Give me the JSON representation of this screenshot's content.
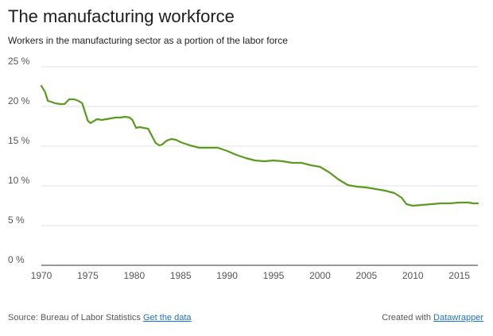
{
  "header": {
    "title": "The manufacturing workforce",
    "subtitle": "Workers in the manufacturing sector as a portion of the labor force"
  },
  "footer": {
    "source_label": "Source: Bureau of Labor Statistics",
    "get_data_link": "Get the data",
    "created_with_label": "Created with",
    "datawrapper_link": "Datawrapper"
  },
  "colors": {
    "line": "#5a9a1f",
    "grid": "#e2e2e2",
    "baseline": "#333333"
  },
  "chart_data": {
    "type": "line",
    "title": "The manufacturing workforce",
    "subtitle": "Workers in the manufacturing sector as a portion of the labor force",
    "xlabel": "",
    "ylabel": "",
    "xlim": [
      1970,
      2017
    ],
    "ylim": [
      0,
      25
    ],
    "x_ticks": [
      1970,
      1975,
      1980,
      1985,
      1990,
      1995,
      2000,
      2005,
      2010,
      2015
    ],
    "x_tick_labels": [
      "1970",
      "1975",
      "1980",
      "1985",
      "1990",
      "1995",
      "2000",
      "2005",
      "2010",
      "2015"
    ],
    "y_ticks": [
      0,
      5,
      10,
      15,
      20,
      25
    ],
    "y_tick_labels": [
      "0 %",
      "5 %",
      "10 %",
      "15 %",
      "20 %",
      "25 %"
    ],
    "grid": "horizontal",
    "legend": "none",
    "series": [
      {
        "values": [
          [
            1970.0,
            22.6
          ],
          [
            1970.4,
            21.8
          ],
          [
            1970.7,
            20.7
          ],
          [
            1971.0,
            20.6
          ],
          [
            1971.5,
            20.4
          ],
          [
            1972.0,
            20.3
          ],
          [
            1972.5,
            20.3
          ],
          [
            1973.0,
            20.9
          ],
          [
            1973.5,
            20.9
          ],
          [
            1974.0,
            20.7
          ],
          [
            1974.4,
            20.4
          ],
          [
            1974.7,
            19.3
          ],
          [
            1975.0,
            18.2
          ],
          [
            1975.3,
            17.9
          ],
          [
            1975.7,
            18.2
          ],
          [
            1976.0,
            18.4
          ],
          [
            1976.5,
            18.3
          ],
          [
            1977.0,
            18.4
          ],
          [
            1977.5,
            18.5
          ],
          [
            1978.0,
            18.6
          ],
          [
            1978.5,
            18.6
          ],
          [
            1979.0,
            18.7
          ],
          [
            1979.5,
            18.6
          ],
          [
            1979.8,
            18.3
          ],
          [
            1980.2,
            17.3
          ],
          [
            1980.6,
            17.4
          ],
          [
            1981.0,
            17.3
          ],
          [
            1981.5,
            17.2
          ],
          [
            1981.9,
            16.3
          ],
          [
            1982.3,
            15.4
          ],
          [
            1982.7,
            15.1
          ],
          [
            1983.0,
            15.2
          ],
          [
            1983.5,
            15.7
          ],
          [
            1984.0,
            15.9
          ],
          [
            1984.5,
            15.8
          ],
          [
            1985.0,
            15.5
          ],
          [
            1986.0,
            15.1
          ],
          [
            1987.0,
            14.8
          ],
          [
            1988.0,
            14.8
          ],
          [
            1989.0,
            14.8
          ],
          [
            1990.0,
            14.4
          ],
          [
            1991.0,
            13.9
          ],
          [
            1992.0,
            13.5
          ],
          [
            1993.0,
            13.2
          ],
          [
            1994.0,
            13.1
          ],
          [
            1995.0,
            13.2
          ],
          [
            1996.0,
            13.1
          ],
          [
            1997.0,
            12.9
          ],
          [
            1998.0,
            12.9
          ],
          [
            1999.0,
            12.6
          ],
          [
            2000.0,
            12.4
          ],
          [
            2001.0,
            11.7
          ],
          [
            2002.0,
            10.8
          ],
          [
            2003.0,
            10.1
          ],
          [
            2004.0,
            9.9
          ],
          [
            2005.0,
            9.8
          ],
          [
            2006.0,
            9.6
          ],
          [
            2007.0,
            9.4
          ],
          [
            2008.0,
            9.1
          ],
          [
            2008.8,
            8.5
          ],
          [
            2009.3,
            7.7
          ],
          [
            2010.0,
            7.5
          ],
          [
            2011.0,
            7.6
          ],
          [
            2012.0,
            7.7
          ],
          [
            2013.0,
            7.8
          ],
          [
            2014.0,
            7.8
          ],
          [
            2015.0,
            7.9
          ],
          [
            2016.0,
            7.9
          ],
          [
            2016.5,
            7.8
          ],
          [
            2017.0,
            7.8
          ]
        ]
      }
    ]
  }
}
